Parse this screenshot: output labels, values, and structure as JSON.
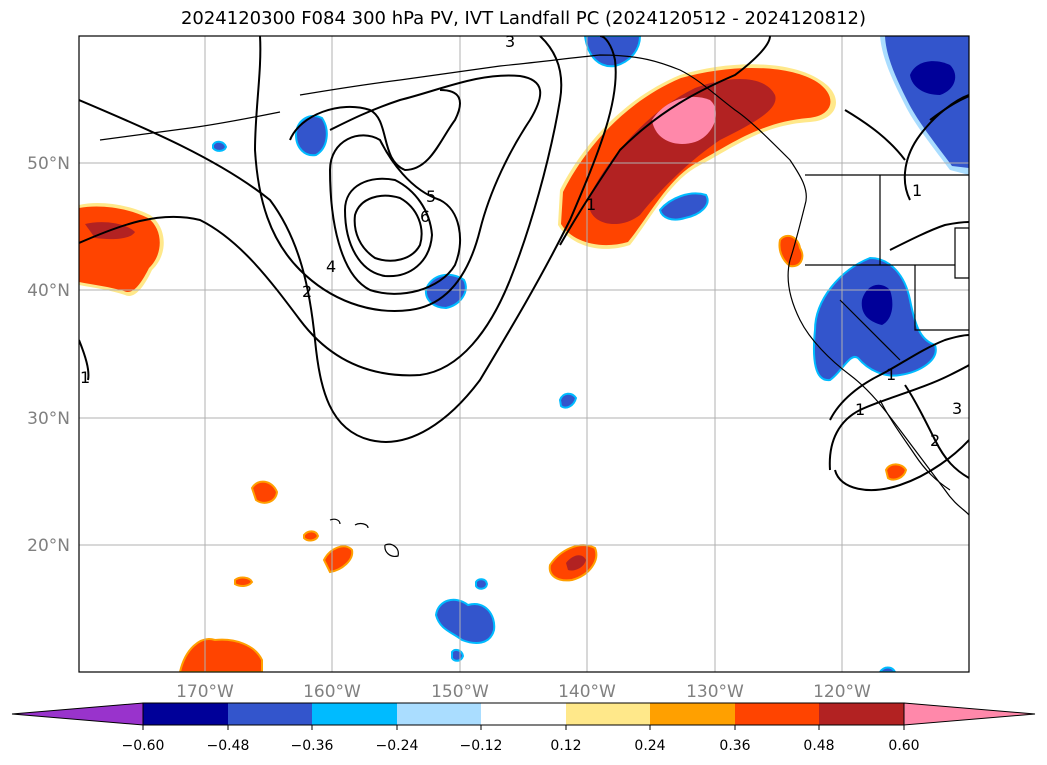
{
  "title": "2024120300 F084 300 hPa PV, IVT Landfall PC (2024120512 - 2024120812)",
  "lat_labels": [
    "50°N",
    "40°N",
    "30°N",
    "20°N"
  ],
  "lon_labels": [
    "170°W",
    "160°W",
    "150°W",
    "140°W",
    "130°W",
    "120°W"
  ],
  "contour_labels": [
    "3",
    "5",
    "6",
    "4",
    "2",
    "1",
    "1",
    "1",
    "1",
    "2",
    "3",
    "1"
  ],
  "colorbar": {
    "colors": [
      "#9933cc",
      "#000099",
      "#3355cc",
      "#00bbff",
      "#aaddff",
      "#ffffff",
      "#ffe88a",
      "#ffa000",
      "#ff4400",
      "#b22222",
      "#ff88aa"
    ],
    "ticks": [
      "−0.60",
      "−0.48",
      "−0.36",
      "−0.24",
      "−0.12",
      "0.12",
      "0.24",
      "0.36",
      "0.48",
      "0.60"
    ]
  },
  "grid": true
}
